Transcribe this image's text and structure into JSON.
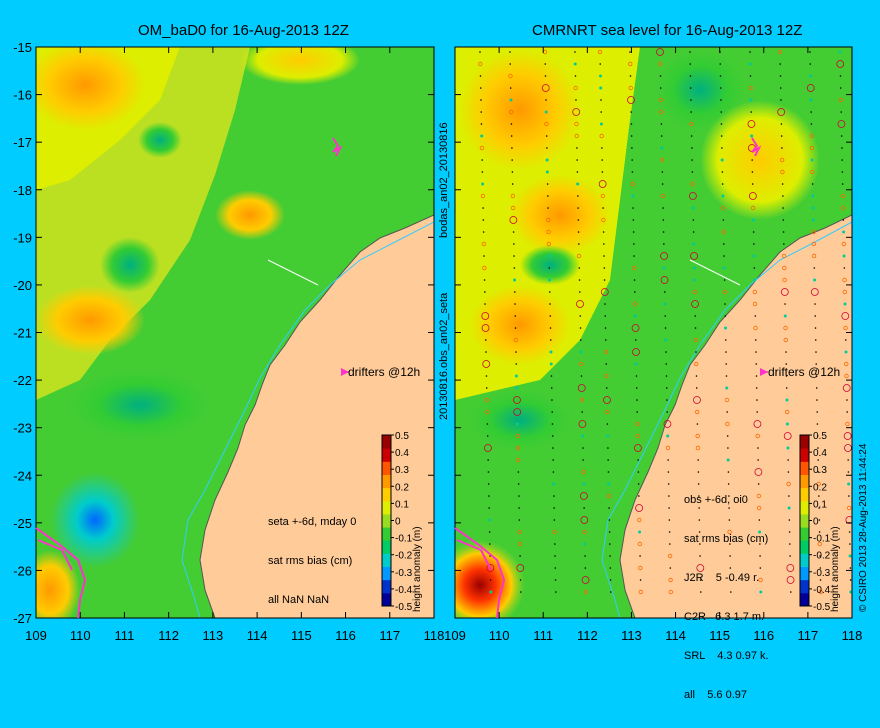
{
  "left_panel": {
    "title": "OM_baD0 for 16-Aug-2013 12Z",
    "y_ticks": [
      "-15",
      "-16",
      "-17",
      "-18",
      "-19",
      "-20",
      "-21",
      "-22",
      "-23",
      "-24",
      "-25",
      "-26",
      "-27"
    ],
    "x_ticks": [
      "109",
      "110",
      "111",
      "112",
      "113",
      "114",
      "115",
      "116",
      "117",
      "118"
    ],
    "drifter_label": "drifters @12h",
    "stats": [
      "seta +-6d, mday 0",
      "sat rms bias (cm)",
      "all NaN NaN"
    ],
    "colorbar_label": "height anomaly (m)",
    "colorbar_ticks": [
      "0.5",
      "0.4",
      "0.3",
      "0.2",
      "0.1",
      "0",
      "-0.1",
      "-0.2",
      "-0.3",
      "-0.4",
      "-0.5"
    ]
  },
  "right_panel": {
    "title": "CMRNRT sea level  for 16-Aug-2013 12Z",
    "y_ticks": [
      "-15",
      "-16",
      "-17",
      "-18",
      "-19",
      "-20",
      "-21",
      "-22",
      "-23",
      "-24",
      "-25",
      "-26",
      "-27"
    ],
    "x_ticks": [
      "109",
      "110",
      "111",
      "112",
      "113",
      "114",
      "115",
      "116",
      "117",
      "118"
    ],
    "drifter_label": "drifters @12h",
    "stats": [
      "obs +-6d, oi0",
      "sat rms bias (cm)",
      "J2R    5 -0.49 r.",
      "C2R   6.3 1.7 m.",
      "SRL    4.3 0.97 k.",
      "all    5.6 0.97"
    ],
    "colorbar_label": "height anomaly (m)",
    "colorbar_ticks": [
      "0.5",
      "0.4",
      "0.3",
      "0.2",
      "0.1",
      "0",
      "-0.1",
      "-0.2",
      "-0.3",
      "-0.4",
      "-0.5"
    ]
  },
  "side_labels": {
    "left_vertical_top": "bodas_an02_20130816",
    "left_vertical_bottom": "20130816.obs_an02_seta",
    "right_vertical": "© CSIRO 2013   28-Aug-2013 11:44:24"
  },
  "colors": {
    "background": "#00ccff",
    "land": "#ffcc99",
    "coast_current": "#33ccff",
    "drifter": "#ff33cc",
    "colorbar": [
      "#000099",
      "#0033cc",
      "#0099ff",
      "#00cccc",
      "#00cc66",
      "#33cc33",
      "#99dd22",
      "#ddee00",
      "#ffcc00",
      "#ff9900",
      "#ff5500",
      "#cc0000",
      "#990000"
    ]
  }
}
